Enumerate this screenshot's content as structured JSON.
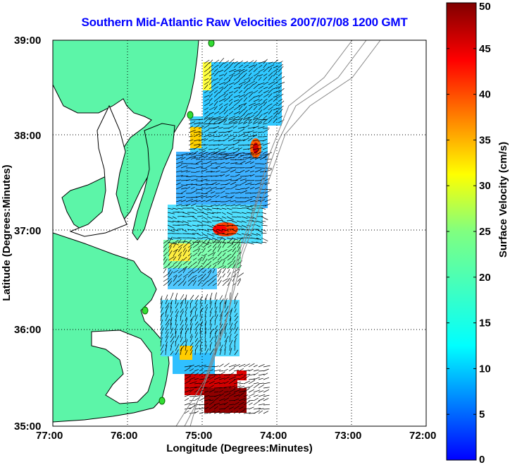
{
  "title": "Southern Mid-Atlantic Raw Velocities 2007/07/08 1200 GMT",
  "map": {
    "xlabel": "Longitude (Degrees:Minutes)",
    "ylabel": "Latitude (Degrees:Minutes)",
    "x_ticks": [
      "77:00",
      "76:00",
      "75:00",
      "74:00",
      "73:00",
      "72:00"
    ],
    "y_ticks": [
      "39:00",
      "38:00",
      "37:00",
      "36:00",
      "35:00"
    ],
    "lon_range": [
      -77,
      -72
    ],
    "lat_range": [
      35,
      39
    ],
    "grid": true,
    "land_color": "#5cf5a8",
    "station_color": "#33dd33"
  },
  "colorbar": {
    "label": "Surface Velocity (cm/s)",
    "ticks": [
      "50",
      "45",
      "40",
      "35",
      "30",
      "25",
      "20",
      "15",
      "10",
      "5",
      "0"
    ],
    "range": [
      0,
      50
    ]
  }
}
